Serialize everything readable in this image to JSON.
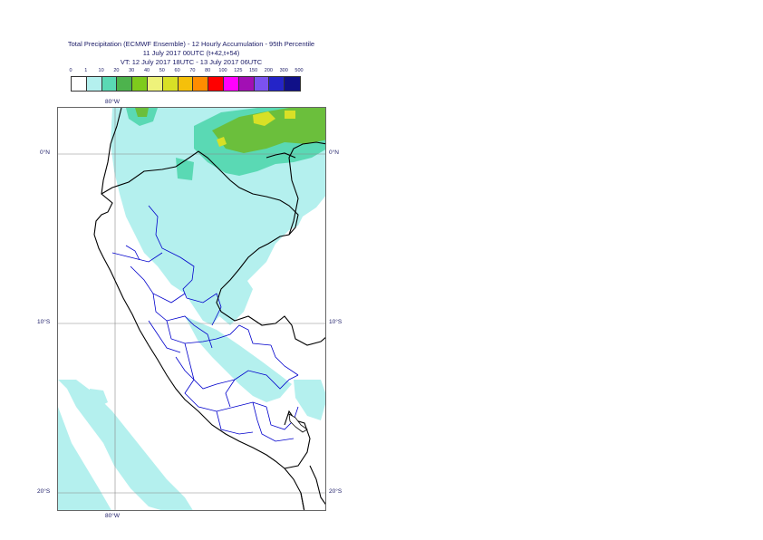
{
  "header": {
    "line1": "Total Precipitation (ECMWF Ensemble) - 12 Hourly Accumulation - 95th Percentile",
    "line2": "11 July 2017 00UTC (t+42,t+54)",
    "line3": "VT: 12 July 2017 18UTC - 13 July 2017 06UTC"
  },
  "legend": {
    "labels": [
      "0",
      "1",
      "10",
      "20",
      "30",
      "40",
      "50",
      "60",
      "70",
      "80",
      "100",
      "125",
      "150",
      "200",
      "300",
      "500"
    ],
    "colors": [
      "#ffffff",
      "#b4f0ee",
      "#5ad9b4",
      "#4db34d",
      "#7ecb1c",
      "#eef27a",
      "#d8e026",
      "#f5c00a",
      "#ff8c00",
      "#ff0000",
      "#ff00ff",
      "#a20fb4",
      "#7b52f0",
      "#2424c8",
      "#101088"
    ]
  },
  "axes": {
    "lon_top": "80°W",
    "lon_bottom": "80°W",
    "lat_0_left": "0°N",
    "lat_0_right": "0°N",
    "lat_10_left": "10°S",
    "lat_10_right": "10°S",
    "lat_20_left": "20°S",
    "lat_20_right": "20°S"
  },
  "map": {
    "precip_colors": {
      "light": "#b4f0ee",
      "medium": "#5ad9b4",
      "green": "#6bbf3c",
      "yellow": "#d8e026"
    },
    "border_color": "#000000",
    "admin_color": "#0000cc",
    "grid_color": "#888888"
  }
}
